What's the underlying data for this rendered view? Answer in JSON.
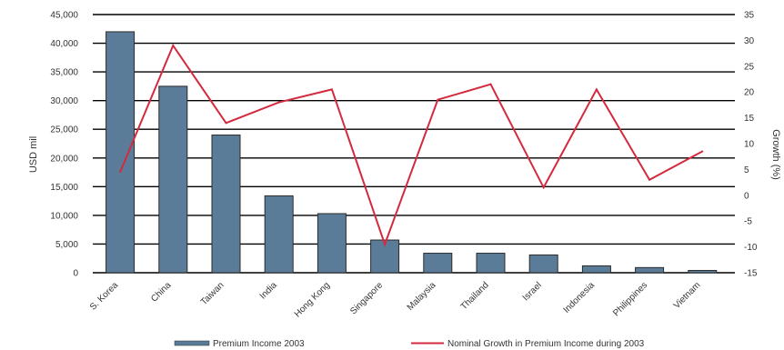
{
  "chart_data": {
    "type": "bar",
    "categories": [
      "S. Korea",
      "China",
      "Taiwan",
      "India",
      "Hong Kong",
      "Singapore",
      "Malaysia",
      "Thailand",
      "Israel",
      "Indonesia",
      "Philippines",
      "Vietnam"
    ],
    "series": [
      {
        "name": "Premium Income 2003",
        "type": "bar",
        "axis": "left",
        "color": "#5b7c99",
        "values": [
          42000,
          32500,
          24000,
          13400,
          10300,
          5700,
          3400,
          3400,
          3100,
          1200,
          900,
          400
        ]
      },
      {
        "name": "Nominal Growth in Premium Income during 2003",
        "type": "line",
        "axis": "right",
        "color": "#d42a3f",
        "values": [
          4.5,
          29,
          14,
          18,
          20.5,
          -9.5,
          18.5,
          21.5,
          1.5,
          20.5,
          3,
          8.5
        ]
      }
    ],
    "y_left": {
      "label": "USD mil",
      "min": 0,
      "max": 45000,
      "step": 5000,
      "ticks": [
        "0",
        "5,000",
        "10,000",
        "15,000",
        "20,000",
        "25,000",
        "30,000",
        "35,000",
        "40,000",
        "45,000"
      ]
    },
    "y_right": {
      "label": "Growth (%)",
      "min": -15,
      "max": 35,
      "step": 5,
      "ticks": [
        "-15",
        "-10",
        "-5",
        "0",
        "5",
        "10",
        "15",
        "20",
        "25",
        "30",
        "35"
      ]
    },
    "grid": true,
    "gridline_color": "#000000",
    "bar_edge_color": "#2a2a2a",
    "legend_position": "bottom"
  }
}
